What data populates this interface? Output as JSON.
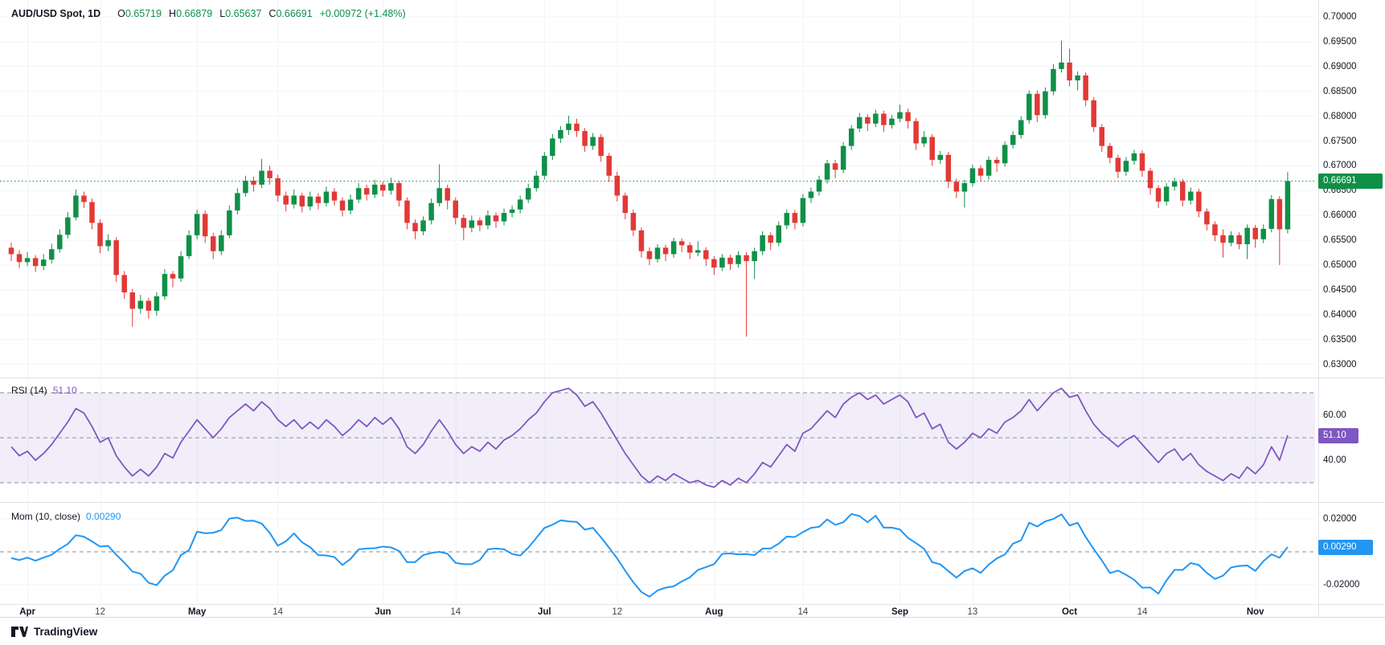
{
  "header": {
    "symbol": "AUD/USD Spot, 1D",
    "o_label": "O",
    "o": "0.65719",
    "h_label": "H",
    "h": "0.66879",
    "l_label": "L",
    "l": "0.65637",
    "c_label": "C",
    "c": "0.66691",
    "change": "+0.00972 (+1.48%)"
  },
  "rsi_legend": {
    "label": "RSI (14)",
    "value": "51.10"
  },
  "mom_legend": {
    "label": "Mom (10, close)",
    "value": "0.00290"
  },
  "badges": {
    "price": "0.66691",
    "rsi": "51.10",
    "mom": "0.00290"
  },
  "footer": {
    "brand": "TradingView"
  },
  "colors": {
    "up": "#0f9048",
    "down": "#e23936",
    "price_line": "#0f9048",
    "rsi": "#7e57c2",
    "rsi_band": "rgba(126,87,194,0.10)",
    "mom": "#2196f3",
    "grid": "#f0f3fa",
    "separator": "#e0e3eb",
    "dash": "#8a8e9e"
  },
  "chart_data": {
    "type": "candlestick",
    "title": "AUD/USD Spot, 1D",
    "ylim": [
      0.63,
      0.7
    ],
    "price_line_value": 0.66691,
    "price_ticks": [
      0.7,
      0.695,
      0.69,
      0.685,
      0.68,
      0.675,
      0.67,
      0.665,
      0.66,
      0.655,
      0.65,
      0.645,
      0.64,
      0.635,
      0.63
    ],
    "x_ticks": [
      {
        "label": "Apr",
        "i": 2,
        "month": true
      },
      {
        "label": "12",
        "i": 11
      },
      {
        "label": "May",
        "i": 23,
        "month": true
      },
      {
        "label": "14",
        "i": 33
      },
      {
        "label": "Jun",
        "i": 46,
        "month": true
      },
      {
        "label": "14",
        "i": 55
      },
      {
        "label": "Jul",
        "i": 66,
        "month": true
      },
      {
        "label": "12",
        "i": 75
      },
      {
        "label": "Aug",
        "i": 87,
        "month": true
      },
      {
        "label": "14",
        "i": 98
      },
      {
        "label": "Sep",
        "i": 110,
        "month": true
      },
      {
        "label": "13",
        "i": 119
      },
      {
        "label": "Oct",
        "i": 131,
        "month": true
      },
      {
        "label": "14",
        "i": 140
      },
      {
        "label": "Nov",
        "i": 154,
        "month": true
      }
    ],
    "candles": [
      [
        0.6535,
        0.6545,
        0.6508,
        0.6522
      ],
      [
        0.6522,
        0.653,
        0.6494,
        0.6506
      ],
      [
        0.6506,
        0.6526,
        0.6498,
        0.6514
      ],
      [
        0.6514,
        0.652,
        0.6486,
        0.6498
      ],
      [
        0.6498,
        0.6522,
        0.649,
        0.6511
      ],
      [
        0.6511,
        0.6543,
        0.6503,
        0.6532
      ],
      [
        0.6532,
        0.6572,
        0.6525,
        0.6561
      ],
      [
        0.6561,
        0.6607,
        0.6554,
        0.6596
      ],
      [
        0.6596,
        0.6652,
        0.659,
        0.664
      ],
      [
        0.664,
        0.6648,
        0.6615,
        0.6627
      ],
      [
        0.6627,
        0.6634,
        0.6572,
        0.6585
      ],
      [
        0.6585,
        0.6592,
        0.6524,
        0.6538
      ],
      [
        0.6538,
        0.6562,
        0.6528,
        0.655
      ],
      [
        0.655,
        0.6556,
        0.6466,
        0.648
      ],
      [
        0.648,
        0.6488,
        0.6432,
        0.6445
      ],
      [
        0.6445,
        0.6452,
        0.6376,
        0.6412
      ],
      [
        0.6412,
        0.644,
        0.6402,
        0.6428
      ],
      [
        0.6428,
        0.6434,
        0.6392,
        0.6408
      ],
      [
        0.6408,
        0.6445,
        0.6398,
        0.6437
      ],
      [
        0.6437,
        0.6492,
        0.643,
        0.6482
      ],
      [
        0.6482,
        0.6488,
        0.6455,
        0.6473
      ],
      [
        0.6473,
        0.6528,
        0.6466,
        0.6518
      ],
      [
        0.6518,
        0.657,
        0.6512,
        0.656
      ],
      [
        0.656,
        0.6612,
        0.6552,
        0.6603
      ],
      [
        0.6603,
        0.661,
        0.6545,
        0.6558
      ],
      [
        0.6558,
        0.6565,
        0.6512,
        0.6528
      ],
      [
        0.6528,
        0.657,
        0.652,
        0.656
      ],
      [
        0.656,
        0.662,
        0.6554,
        0.661
      ],
      [
        0.661,
        0.6655,
        0.6602,
        0.6645
      ],
      [
        0.6645,
        0.668,
        0.6638,
        0.667
      ],
      [
        0.667,
        0.6678,
        0.6648,
        0.6662
      ],
      [
        0.6662,
        0.6714,
        0.6655,
        0.669
      ],
      [
        0.669,
        0.67,
        0.6662,
        0.6675
      ],
      [
        0.6675,
        0.6682,
        0.6628,
        0.664
      ],
      [
        0.664,
        0.6648,
        0.6608,
        0.6622
      ],
      [
        0.6622,
        0.6652,
        0.6614,
        0.664
      ],
      [
        0.664,
        0.6646,
        0.6606,
        0.6618
      ],
      [
        0.6618,
        0.6648,
        0.661,
        0.6638
      ],
      [
        0.6638,
        0.6645,
        0.6612,
        0.6625
      ],
      [
        0.6625,
        0.6658,
        0.6618,
        0.6648
      ],
      [
        0.6648,
        0.6655,
        0.662,
        0.663
      ],
      [
        0.663,
        0.6636,
        0.6598,
        0.661
      ],
      [
        0.661,
        0.6642,
        0.6602,
        0.6632
      ],
      [
        0.6632,
        0.6665,
        0.6625,
        0.6655
      ],
      [
        0.6655,
        0.6662,
        0.663,
        0.6642
      ],
      [
        0.6642,
        0.6672,
        0.6635,
        0.6662
      ],
      [
        0.6662,
        0.6668,
        0.6638,
        0.665
      ],
      [
        0.665,
        0.6676,
        0.6642,
        0.6665
      ],
      [
        0.6665,
        0.667,
        0.6618,
        0.663
      ],
      [
        0.663,
        0.6636,
        0.6572,
        0.6585
      ],
      [
        0.6585,
        0.6592,
        0.6552,
        0.6568
      ],
      [
        0.6568,
        0.6598,
        0.656,
        0.659
      ],
      [
        0.659,
        0.6634,
        0.6582,
        0.6625
      ],
      [
        0.6625,
        0.6703,
        0.6618,
        0.6655
      ],
      [
        0.6655,
        0.6662,
        0.6612,
        0.663
      ],
      [
        0.663,
        0.6636,
        0.6582,
        0.6595
      ],
      [
        0.6595,
        0.6602,
        0.655,
        0.6575
      ],
      [
        0.6575,
        0.66,
        0.6566,
        0.659
      ],
      [
        0.659,
        0.6596,
        0.6568,
        0.658
      ],
      [
        0.658,
        0.661,
        0.6572,
        0.66
      ],
      [
        0.66,
        0.6606,
        0.6575,
        0.6588
      ],
      [
        0.6588,
        0.6614,
        0.658,
        0.6605
      ],
      [
        0.6605,
        0.662,
        0.6596,
        0.6612
      ],
      [
        0.6612,
        0.664,
        0.6604,
        0.6632
      ],
      [
        0.6632,
        0.6664,
        0.6625,
        0.6655
      ],
      [
        0.6655,
        0.669,
        0.6648,
        0.668
      ],
      [
        0.668,
        0.6728,
        0.6672,
        0.672
      ],
      [
        0.672,
        0.6764,
        0.6712,
        0.6755
      ],
      [
        0.6755,
        0.678,
        0.6746,
        0.6772
      ],
      [
        0.6772,
        0.6801,
        0.6762,
        0.6785
      ],
      [
        0.6785,
        0.6795,
        0.6758,
        0.677
      ],
      [
        0.677,
        0.6776,
        0.6728,
        0.674
      ],
      [
        0.674,
        0.6766,
        0.6732,
        0.6758
      ],
      [
        0.6758,
        0.6764,
        0.6708,
        0.672
      ],
      [
        0.672,
        0.6726,
        0.6668,
        0.668
      ],
      [
        0.668,
        0.6688,
        0.6628,
        0.664
      ],
      [
        0.664,
        0.6646,
        0.6592,
        0.6605
      ],
      [
        0.6605,
        0.6612,
        0.6558,
        0.657
      ],
      [
        0.657,
        0.6576,
        0.6515,
        0.6528
      ],
      [
        0.6528,
        0.6536,
        0.65,
        0.6512
      ],
      [
        0.6512,
        0.6542,
        0.6505,
        0.6535
      ],
      [
        0.6535,
        0.6541,
        0.6508,
        0.6522
      ],
      [
        0.6522,
        0.6555,
        0.6515,
        0.6548
      ],
      [
        0.6548,
        0.6554,
        0.6526,
        0.654
      ],
      [
        0.654,
        0.6546,
        0.6512,
        0.6525
      ],
      [
        0.6525,
        0.6548,
        0.6518,
        0.653
      ],
      [
        0.653,
        0.6536,
        0.6498,
        0.6512
      ],
      [
        0.6512,
        0.6518,
        0.648,
        0.6495
      ],
      [
        0.6495,
        0.6522,
        0.6488,
        0.6515
      ],
      [
        0.6515,
        0.6521,
        0.649,
        0.6502
      ],
      [
        0.6502,
        0.6528,
        0.6495,
        0.652
      ],
      [
        0.652,
        0.6526,
        0.6356,
        0.6508
      ],
      [
        0.6508,
        0.6535,
        0.6472,
        0.6528
      ],
      [
        0.6528,
        0.6568,
        0.652,
        0.656
      ],
      [
        0.656,
        0.6566,
        0.653,
        0.6545
      ],
      [
        0.6545,
        0.6588,
        0.6538,
        0.658
      ],
      [
        0.658,
        0.6612,
        0.6572,
        0.6605
      ],
      [
        0.6605,
        0.6611,
        0.6572,
        0.6585
      ],
      [
        0.6585,
        0.6643,
        0.6578,
        0.6635
      ],
      [
        0.6635,
        0.6656,
        0.6625,
        0.6648
      ],
      [
        0.6648,
        0.668,
        0.664,
        0.6672
      ],
      [
        0.6672,
        0.6712,
        0.6664,
        0.6705
      ],
      [
        0.6705,
        0.6712,
        0.6675,
        0.6692
      ],
      [
        0.6692,
        0.6748,
        0.6685,
        0.674
      ],
      [
        0.674,
        0.6782,
        0.6732,
        0.6775
      ],
      [
        0.6775,
        0.6806,
        0.6768,
        0.6798
      ],
      [
        0.6798,
        0.6804,
        0.677,
        0.6785
      ],
      [
        0.6785,
        0.6813,
        0.6778,
        0.6805
      ],
      [
        0.6805,
        0.6811,
        0.6768,
        0.6782
      ],
      [
        0.6782,
        0.6802,
        0.6775,
        0.6795
      ],
      [
        0.6795,
        0.6823,
        0.6788,
        0.6808
      ],
      [
        0.6808,
        0.6815,
        0.6775,
        0.679
      ],
      [
        0.679,
        0.6796,
        0.6732,
        0.6745
      ],
      [
        0.6745,
        0.677,
        0.6738,
        0.6758
      ],
      [
        0.6758,
        0.6764,
        0.67,
        0.6712
      ],
      [
        0.6712,
        0.673,
        0.6704,
        0.6722
      ],
      [
        0.6722,
        0.6728,
        0.6655,
        0.6668
      ],
      [
        0.6668,
        0.6674,
        0.6635,
        0.6648
      ],
      [
        0.6648,
        0.6672,
        0.6616,
        0.6665
      ],
      [
        0.6665,
        0.6702,
        0.6658,
        0.6695
      ],
      [
        0.6695,
        0.6701,
        0.6668,
        0.668
      ],
      [
        0.668,
        0.6719,
        0.6672,
        0.6712
      ],
      [
        0.6712,
        0.6718,
        0.6688,
        0.6705
      ],
      [
        0.6705,
        0.6749,
        0.6698,
        0.6742
      ],
      [
        0.6742,
        0.677,
        0.6735,
        0.6762
      ],
      [
        0.6762,
        0.68,
        0.6755,
        0.6792
      ],
      [
        0.6792,
        0.6852,
        0.6785,
        0.6845
      ],
      [
        0.6845,
        0.6852,
        0.6788,
        0.6802
      ],
      [
        0.6802,
        0.6858,
        0.6795,
        0.685
      ],
      [
        0.685,
        0.6905,
        0.6842,
        0.6895
      ],
      [
        0.6895,
        0.6952,
        0.6888,
        0.6908
      ],
      [
        0.6908,
        0.6936,
        0.686,
        0.6872
      ],
      [
        0.6872,
        0.689,
        0.6852,
        0.6882
      ],
      [
        0.6882,
        0.6888,
        0.682,
        0.6832
      ],
      [
        0.6832,
        0.6838,
        0.6768,
        0.6778
      ],
      [
        0.6778,
        0.6784,
        0.6728,
        0.674
      ],
      [
        0.674,
        0.6746,
        0.6705,
        0.6716
      ],
      [
        0.6716,
        0.6722,
        0.6675,
        0.6688
      ],
      [
        0.6688,
        0.6718,
        0.668,
        0.671
      ],
      [
        0.671,
        0.6732,
        0.6702,
        0.6725
      ],
      [
        0.6725,
        0.6731,
        0.6678,
        0.669
      ],
      [
        0.669,
        0.6696,
        0.6642,
        0.6655
      ],
      [
        0.6655,
        0.6661,
        0.6615,
        0.6628
      ],
      [
        0.6628,
        0.6665,
        0.662,
        0.6658
      ],
      [
        0.6658,
        0.6676,
        0.665,
        0.6668
      ],
      [
        0.6668,
        0.6674,
        0.6618,
        0.663
      ],
      [
        0.663,
        0.6656,
        0.6622,
        0.6648
      ],
      [
        0.6648,
        0.6654,
        0.6596,
        0.6608
      ],
      [
        0.6608,
        0.6614,
        0.657,
        0.6582
      ],
      [
        0.6582,
        0.6588,
        0.6548,
        0.656
      ],
      [
        0.656,
        0.6572,
        0.6515,
        0.6545
      ],
      [
        0.6545,
        0.6568,
        0.6538,
        0.656
      ],
      [
        0.656,
        0.6566,
        0.6532,
        0.6542
      ],
      [
        0.6542,
        0.6582,
        0.6512,
        0.6575
      ],
      [
        0.6575,
        0.6581,
        0.6535,
        0.6552
      ],
      [
        0.6552,
        0.6582,
        0.6544,
        0.6573
      ],
      [
        0.6573,
        0.6641,
        0.6566,
        0.6633
      ],
      [
        0.6633,
        0.6639,
        0.65,
        0.6572
      ],
      [
        0.65719,
        0.66879,
        0.65637,
        0.66691
      ]
    ],
    "indicators": [
      {
        "name": "RSI",
        "params": "14",
        "levels": [
          70,
          50,
          30
        ],
        "band": [
          30,
          70
        ],
        "ticks": [
          60,
          40
        ],
        "last_label": "51.10",
        "values": [
          46,
          42,
          44,
          40,
          43,
          47,
          52,
          57,
          63,
          61,
          55,
          48,
          50,
          42,
          37,
          33,
          36,
          33,
          37,
          43,
          41,
          48,
          53,
          58,
          54,
          50,
          54,
          59,
          62,
          65,
          62,
          66,
          63,
          58,
          55,
          58,
          54,
          57,
          54,
          58,
          55,
          51,
          54,
          58,
          55,
          59,
          56,
          59,
          54,
          46,
          43,
          47,
          53,
          58,
          53,
          47,
          43,
          46,
          44,
          48,
          45,
          49,
          51,
          54,
          58,
          61,
          66,
          70,
          71,
          72,
          69,
          64,
          66,
          61,
          55,
          49,
          43,
          38,
          33,
          30,
          33,
          31,
          34,
          32,
          30,
          31,
          29,
          28,
          31,
          29,
          32,
          30,
          34,
          39,
          37,
          42,
          47,
          44,
          52,
          54,
          58,
          62,
          59,
          65,
          68,
          70,
          67,
          69,
          65,
          67,
          69,
          66,
          59,
          61,
          54,
          56,
          48,
          45,
          48,
          52,
          50,
          54,
          52,
          57,
          59,
          62,
          67,
          62,
          66,
          70,
          72,
          68,
          69,
          62,
          56,
          52,
          49,
          46,
          49,
          51,
          47,
          43,
          39,
          43,
          45,
          40,
          43,
          38,
          35,
          33,
          31,
          34,
          32,
          37,
          34,
          38,
          46,
          40,
          51.1
        ]
      },
      {
        "name": "Mom",
        "params": "10, close",
        "period": 10,
        "ticks": [
          0.02,
          0,
          -0.02
        ],
        "zero_line": 0,
        "last_label": "0.00290",
        "last_value": 0.0029,
        "pre_closes": [
          0.656,
          0.6556,
          0.6549,
          0.6552,
          0.6546,
          0.655,
          0.6543,
          0.6548,
          0.6539,
          0.6535
        ]
      }
    ]
  }
}
